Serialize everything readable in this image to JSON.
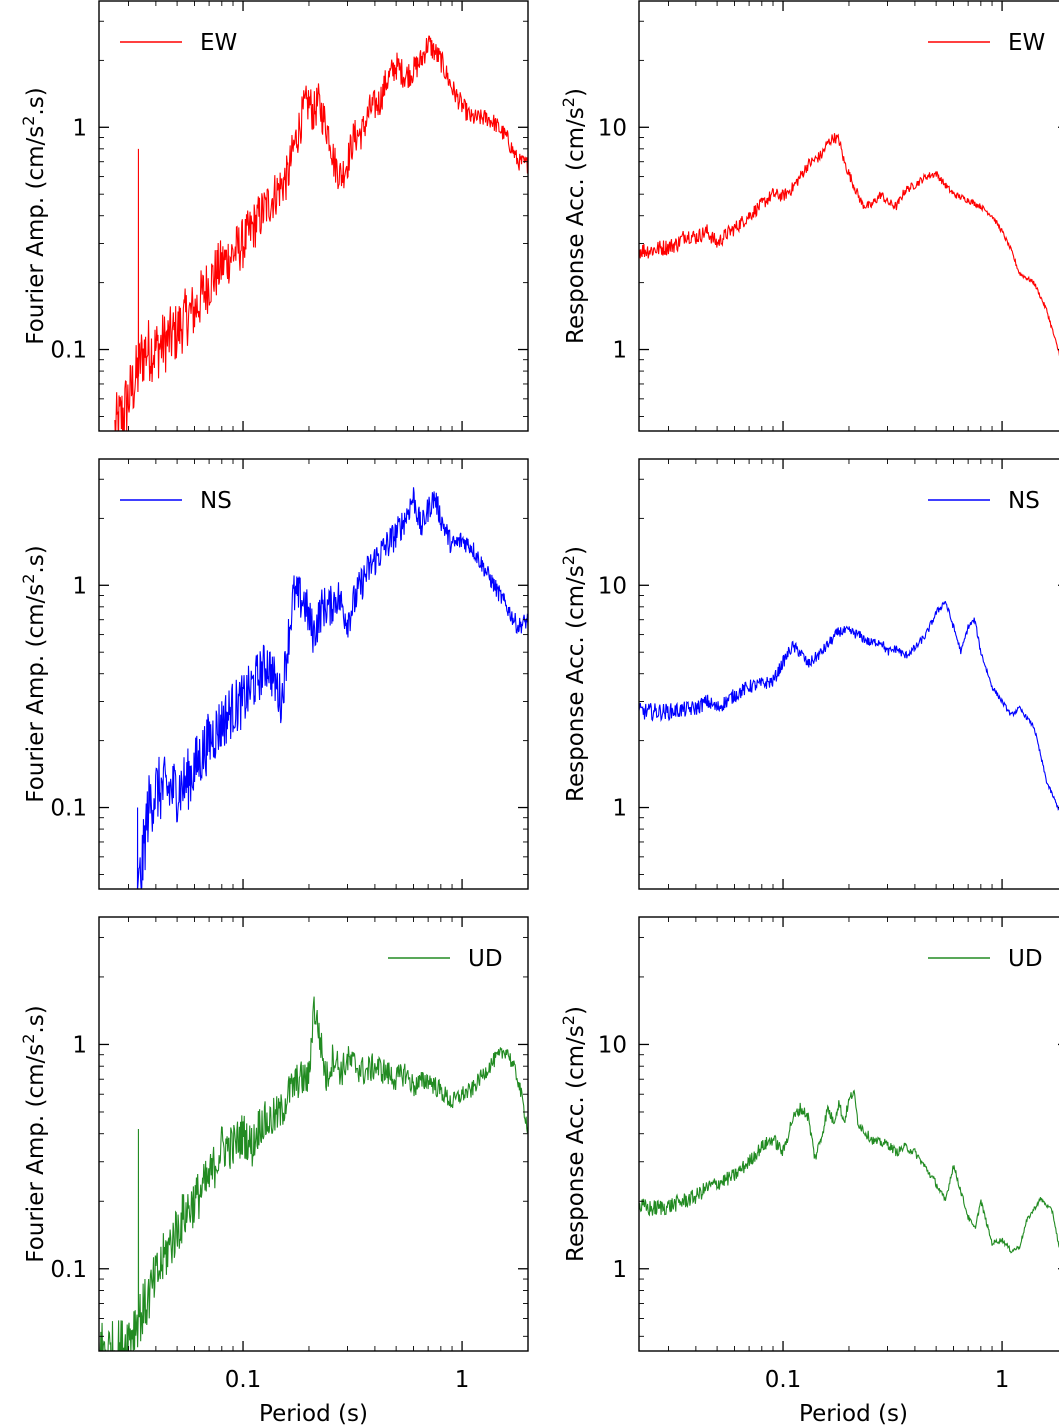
{
  "figure": {
    "xlabel": "Period (s)"
  },
  "chart_data": [
    {
      "id": "fourier-ew",
      "type": "line",
      "scale": "log-log",
      "ylabel_main": "Fourier Amp. (cm/s",
      "ylabel_sup": "2",
      "ylabel_tail": ".s)",
      "xlim": [
        0.022,
        2.0
      ],
      "ylim": [
        0.043,
        3.7
      ],
      "xticks": [
        {
          "v": 0.1,
          "label": "0.1"
        },
        {
          "v": 1,
          "label": "1"
        }
      ],
      "yticks": [
        {
          "v": 0.1,
          "label": "0.1"
        },
        {
          "v": 1,
          "label": "1"
        }
      ],
      "legend": "top-left",
      "grid": false,
      "series": [
        {
          "name": "EW",
          "color": "#ff0000",
          "noise": 0.16,
          "spikes": [
            [
              0.0333,
              0.8
            ]
          ],
          "x": [
            0.026,
            0.028,
            0.03,
            0.0325,
            0.0335,
            0.034,
            0.036,
            0.04,
            0.045,
            0.05,
            0.055,
            0.06,
            0.07,
            0.08,
            0.09,
            0.1,
            0.11,
            0.12,
            0.14,
            0.16,
            0.17,
            0.19,
            0.2,
            0.21,
            0.22,
            0.25,
            0.26,
            0.28,
            0.3,
            0.32,
            0.35,
            0.38,
            0.42,
            0.45,
            0.5,
            0.55,
            0.6,
            0.65,
            0.7,
            0.8,
            0.9,
            1.0,
            1.1,
            1.3,
            1.4,
            1.6,
            1.8,
            2.0
          ],
          "y": [
            0.043,
            0.05,
            0.06,
            0.075,
            0.08,
            0.09,
            0.1,
            0.1,
            0.11,
            0.12,
            0.14,
            0.15,
            0.2,
            0.24,
            0.27,
            0.3,
            0.35,
            0.4,
            0.5,
            0.6,
            0.8,
            1.2,
            1.3,
            1.15,
            1.3,
            0.9,
            0.7,
            0.6,
            0.7,
            0.9,
            0.95,
            1.2,
            1.3,
            1.6,
            1.9,
            1.7,
            1.8,
            2.0,
            2.4,
            2.0,
            1.5,
            1.25,
            1.1,
            1.1,
            1.05,
            0.9,
            0.7,
            0.68
          ]
        }
      ]
    },
    {
      "id": "response-ew",
      "type": "line",
      "scale": "log-log",
      "ylabel_main": "Response Acc. (cm/s",
      "ylabel_sup": "2",
      "ylabel_tail": ")",
      "xlim": [
        0.022,
        2.0
      ],
      "ylim": [
        0.43,
        37
      ],
      "xticks": [
        {
          "v": 0.1,
          "label": "0.1"
        },
        {
          "v": 1,
          "label": "1"
        }
      ],
      "yticks": [
        {
          "v": 1,
          "label": "1"
        },
        {
          "v": 10,
          "label": "10"
        }
      ],
      "legend": "top-right",
      "grid": false,
      "series": [
        {
          "name": "EW",
          "color": "#ff0000",
          "noise": 0.04,
          "spikes": [],
          "x": [
            0.022,
            0.025,
            0.027,
            0.03,
            0.033,
            0.036,
            0.04,
            0.045,
            0.05,
            0.055,
            0.06,
            0.07,
            0.08,
            0.09,
            0.1,
            0.11,
            0.12,
            0.13,
            0.15,
            0.16,
            0.17,
            0.18,
            0.19,
            0.21,
            0.23,
            0.25,
            0.28,
            0.3,
            0.33,
            0.36,
            0.4,
            0.45,
            0.5,
            0.55,
            0.6,
            0.7,
            0.8,
            0.9,
            1.0,
            1.1,
            1.2,
            1.4,
            1.6,
            1.8,
            2.0
          ],
          "y": [
            2.8,
            2.8,
            2.85,
            2.9,
            3.0,
            3.3,
            3.2,
            3.4,
            3.0,
            3.3,
            3.5,
            4.0,
            4.5,
            5.0,
            4.9,
            5.3,
            6.0,
            6.8,
            7.5,
            8.5,
            9.0,
            8.8,
            7.0,
            5.5,
            4.5,
            4.4,
            5.0,
            4.6,
            4.4,
            5.2,
            5.5,
            6.0,
            6.2,
            5.5,
            5.0,
            4.7,
            4.4,
            4.0,
            3.4,
            2.8,
            2.2,
            2.0,
            1.5,
            1.0,
            0.75
          ]
        }
      ]
    },
    {
      "id": "fourier-ns",
      "type": "line",
      "scale": "log-log",
      "ylabel_main": "Fourier Amp. (cm/s",
      "ylabel_sup": "2",
      "ylabel_tail": ".s)",
      "xlim": [
        0.022,
        2.0
      ],
      "ylim": [
        0.043,
        3.7
      ],
      "xticks": [
        {
          "v": 0.1,
          "label": "0.1"
        },
        {
          "v": 1,
          "label": "1"
        }
      ],
      "yticks": [
        {
          "v": 0.1,
          "label": "0.1"
        },
        {
          "v": 1,
          "label": "1"
        }
      ],
      "legend": "top-left",
      "grid": false,
      "series": [
        {
          "name": "NS",
          "color": "#0000ff",
          "noise": 0.16,
          "spikes": [
            [
              0.033,
              0.1
            ]
          ],
          "x": [
            0.0335,
            0.035,
            0.036,
            0.037,
            0.04,
            0.045,
            0.05,
            0.055,
            0.06,
            0.07,
            0.08,
            0.09,
            0.1,
            0.11,
            0.12,
            0.13,
            0.15,
            0.16,
            0.17,
            0.19,
            0.21,
            0.23,
            0.25,
            0.27,
            0.3,
            0.33,
            0.36,
            0.4,
            0.45,
            0.5,
            0.55,
            0.6,
            0.65,
            0.7,
            0.75,
            0.8,
            0.9,
            1.0,
            1.1,
            1.2,
            1.4,
            1.6,
            1.8,
            2.0
          ],
          "y": [
            0.043,
            0.06,
            0.08,
            0.1,
            0.12,
            0.12,
            0.12,
            0.13,
            0.15,
            0.2,
            0.24,
            0.28,
            0.3,
            0.35,
            0.4,
            0.45,
            0.3,
            0.55,
            0.9,
            0.85,
            0.6,
            0.8,
            0.8,
            0.9,
            0.7,
            0.9,
            1.1,
            1.3,
            1.5,
            1.7,
            2.0,
            2.5,
            1.8,
            2.2,
            2.5,
            2.0,
            1.5,
            1.6,
            1.5,
            1.3,
            1.0,
            0.8,
            0.65,
            0.7
          ]
        }
      ]
    },
    {
      "id": "response-ns",
      "type": "line",
      "scale": "log-log",
      "ylabel_main": "Response Acc. (cm/s",
      "ylabel_sup": "2",
      "ylabel_tail": ")",
      "xlim": [
        0.022,
        2.0
      ],
      "ylim": [
        0.43,
        37
      ],
      "xticks": [
        {
          "v": 0.1,
          "label": "0.1"
        },
        {
          "v": 1,
          "label": "1"
        }
      ],
      "yticks": [
        {
          "v": 1,
          "label": "1"
        },
        {
          "v": 10,
          "label": "10"
        }
      ],
      "legend": "top-right",
      "grid": false,
      "series": [
        {
          "name": "NS",
          "color": "#0000ff",
          "noise": 0.04,
          "spikes": [],
          "x": [
            0.022,
            0.025,
            0.03,
            0.035,
            0.04,
            0.045,
            0.05,
            0.06,
            0.07,
            0.08,
            0.09,
            0.1,
            0.11,
            0.12,
            0.13,
            0.15,
            0.18,
            0.2,
            0.22,
            0.25,
            0.28,
            0.3,
            0.33,
            0.36,
            0.4,
            0.45,
            0.5,
            0.55,
            0.6,
            0.65,
            0.7,
            0.75,
            0.8,
            0.9,
            1.0,
            1.1,
            1.2,
            1.4,
            1.6,
            1.8,
            2.0
          ],
          "y": [
            2.7,
            2.7,
            2.7,
            2.75,
            2.8,
            3.0,
            2.8,
            3.2,
            3.5,
            3.6,
            3.7,
            4.5,
            5.3,
            5.0,
            4.4,
            5.0,
            6.2,
            6.2,
            6.0,
            5.5,
            5.6,
            5.0,
            5.2,
            4.8,
            5.2,
            6.0,
            7.5,
            8.5,
            6.5,
            5.0,
            6.5,
            7.0,
            5.0,
            3.5,
            3.0,
            2.6,
            2.8,
            2.3,
            1.3,
            1.0,
            0.97
          ]
        }
      ]
    },
    {
      "id": "fourier-ud",
      "type": "line",
      "scale": "log-log",
      "ylabel_main": "Fourier Amp. (cm/s",
      "ylabel_sup": "2",
      "ylabel_tail": ".s)",
      "xlim": [
        0.022,
        2.0
      ],
      "ylim": [
        0.043,
        3.7
      ],
      "xticks": [
        {
          "v": 0.1,
          "label": "0.1"
        },
        {
          "v": 1,
          "label": "1"
        }
      ],
      "yticks": [
        {
          "v": 0.1,
          "label": "0.1"
        },
        {
          "v": 1,
          "label": "1"
        }
      ],
      "legend": "top-right",
      "grid": false,
      "series": [
        {
          "name": "UD",
          "color": "#228b22",
          "noise": 0.14,
          "spikes": [
            [
              0.0333,
              0.42
            ]
          ],
          "x": [
            0.022,
            0.025,
            0.028,
            0.03,
            0.033,
            0.035,
            0.04,
            0.045,
            0.05,
            0.055,
            0.06,
            0.07,
            0.08,
            0.09,
            0.1,
            0.11,
            0.12,
            0.13,
            0.15,
            0.16,
            0.18,
            0.2,
            0.21,
            0.22,
            0.24,
            0.26,
            0.28,
            0.3,
            0.33,
            0.36,
            0.4,
            0.45,
            0.5,
            0.55,
            0.6,
            0.7,
            0.8,
            0.9,
            1.0,
            1.1,
            1.2,
            1.4,
            1.6,
            1.8,
            2.0
          ],
          "y": [
            0.045,
            0.043,
            0.045,
            0.05,
            0.06,
            0.065,
            0.09,
            0.12,
            0.15,
            0.18,
            0.2,
            0.25,
            0.35,
            0.35,
            0.4,
            0.35,
            0.45,
            0.45,
            0.5,
            0.6,
            0.7,
            0.7,
            1.5,
            1.2,
            0.7,
            0.9,
            0.75,
            0.85,
            0.8,
            0.75,
            0.8,
            0.75,
            0.7,
            0.75,
            0.65,
            0.7,
            0.62,
            0.55,
            0.6,
            0.62,
            0.7,
            0.85,
            0.95,
            0.7,
            0.42
          ]
        }
      ]
    },
    {
      "id": "response-ud",
      "type": "line",
      "scale": "log-log",
      "ylabel_main": "Response Acc. (cm/s",
      "ylabel_sup": "2",
      "ylabel_tail": ")",
      "xlim": [
        0.022,
        2.0
      ],
      "ylim": [
        0.43,
        37
      ],
      "xticks": [
        {
          "v": 0.1,
          "label": "0.1"
        },
        {
          "v": 1,
          "label": "1"
        }
      ],
      "yticks": [
        {
          "v": 1,
          "label": "1"
        },
        {
          "v": 10,
          "label": "10"
        }
      ],
      "legend": "top-right",
      "grid": false,
      "series": [
        {
          "name": "UD",
          "color": "#228b22",
          "noise": 0.04,
          "spikes": [],
          "x": [
            0.022,
            0.025,
            0.03,
            0.035,
            0.04,
            0.045,
            0.05,
            0.055,
            0.06,
            0.07,
            0.08,
            0.09,
            0.1,
            0.11,
            0.12,
            0.13,
            0.14,
            0.15,
            0.16,
            0.17,
            0.18,
            0.19,
            0.2,
            0.21,
            0.22,
            0.24,
            0.26,
            0.3,
            0.33,
            0.36,
            0.4,
            0.45,
            0.5,
            0.55,
            0.6,
            0.7,
            0.75,
            0.8,
            0.9,
            1.0,
            1.1,
            1.2,
            1.3,
            1.5,
            1.7,
            1.9,
            2.0
          ],
          "y": [
            1.9,
            1.85,
            1.9,
            2.0,
            2.1,
            2.3,
            2.4,
            2.5,
            2.6,
            3.0,
            3.5,
            3.8,
            3.3,
            4.6,
            5.2,
            4.8,
            3.1,
            3.9,
            5.2,
            4.5,
            5.5,
            4.5,
            5.6,
            6.2,
            4.5,
            4.0,
            3.7,
            3.6,
            3.3,
            3.5,
            3.3,
            2.8,
            2.4,
            2.0,
            2.9,
            1.7,
            1.5,
            2.0,
            1.3,
            1.35,
            1.2,
            1.25,
            1.65,
            2.05,
            1.8,
            1.0,
            0.6
          ]
        }
      ]
    }
  ]
}
